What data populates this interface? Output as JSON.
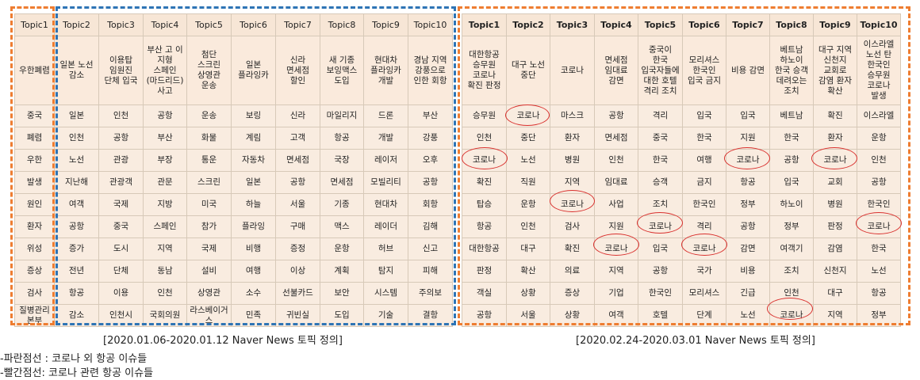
{
  "left_table": {
    "headers": [
      "Topic1",
      "Topic2",
      "Topic3",
      "Topic4",
      "Topic5",
      "Topic6",
      "Topic7",
      "Topic8",
      "Topic9",
      "Topic10"
    ],
    "definitions": [
      "우한폐렴",
      "일본 노선 감소",
      "이용탑 임원진 단체 입국",
      "부산 고 이 지형 스페인(마드리드) 사고",
      "첨단 스크린 상영관 운송",
      "일본 플라잉카",
      "신라 면세점 할인",
      "새 기종 보잉맥스 도입",
      "현대차 플라잉카 개발",
      "경남 지역 강풍으로 인한 회항"
    ],
    "rows": [
      [
        "중국",
        "일본",
        "인천",
        "공항",
        "운송",
        "보링",
        "신라",
        "마일리지",
        "드론",
        "부산"
      ],
      [
        "폐렴",
        "인천",
        "공항",
        "부산",
        "화물",
        "계림",
        "고객",
        "항공",
        "개발",
        "강풍"
      ],
      [
        "우한",
        "노선",
        "관광",
        "부장",
        "통운",
        "자동차",
        "면세점",
        "국장",
        "레이저",
        "오후"
      ],
      [
        "발생",
        "지난해",
        "관광객",
        "관문",
        "스크린",
        "일본",
        "공항",
        "면세점",
        "모빌리티",
        "공항"
      ],
      [
        "원인",
        "여객",
        "국제",
        "지방",
        "미국",
        "하늘",
        "서울",
        "기종",
        "현대차",
        "회항"
      ],
      [
        "환자",
        "공항",
        "중국",
        "스페인",
        "참가",
        "플라잉",
        "구매",
        "맥스",
        "레이더",
        "김해"
      ],
      [
        "위성",
        "증가",
        "도시",
        "지역",
        "국제",
        "비행",
        "증정",
        "운항",
        "허브",
        "신고"
      ],
      [
        "증상",
        "전년",
        "단체",
        "동남",
        "설비",
        "여행",
        "이상",
        "계획",
        "탐지",
        "피해"
      ],
      [
        "검사",
        "항공",
        "이용",
        "인천",
        "상영관",
        "소수",
        "선불카드",
        "보안",
        "시스템",
        "주의보"
      ],
      [
        "질병관리본부",
        "감소",
        "인천시",
        "국회의원",
        "라스베이거스",
        "민족",
        "귀빈실",
        "도입",
        "기술",
        "결항"
      ]
    ]
  },
  "right_table": {
    "headers": [
      "Topic1",
      "Topic2",
      "Topic3",
      "Topic4",
      "Topic5",
      "Topic6",
      "Topic7",
      "Topic8",
      "Topic9",
      "Topic10"
    ],
    "definitions": [
      "대한항공 승무원 코로나 확진 판정",
      "대구 노선 중단",
      "코로나",
      "면세점 임대료 감면",
      "중국이 한국 입국자들에 대한 호텔 격리 조치",
      "모리셔스 한국인 입국 금지",
      "비용 감면",
      "베트남 하노이 한국 승객 데려오는 조치",
      "대구 지역 신천지 교회로 감염 환자 확산",
      "이스라엘 노선 탄 한국인 승무원 코로나 발생"
    ],
    "rows": [
      [
        "승무원",
        "코로나",
        "마스크",
        "공항",
        "격리",
        "입국",
        "입국",
        "베트남",
        "확진",
        "이스라엘"
      ],
      [
        "인천",
        "중단",
        "환자",
        "면세점",
        "중국",
        "한국",
        "지원",
        "한국",
        "환자",
        "운항"
      ],
      [
        "코로나",
        "노선",
        "병원",
        "인천",
        "한국",
        "여행",
        "코로나",
        "공항",
        "코로나",
        "인천"
      ],
      [
        "확진",
        "직원",
        "지역",
        "임대료",
        "승객",
        "금지",
        "항공",
        "입국",
        "교회",
        "공항"
      ],
      [
        "탑승",
        "운항",
        "코로나",
        "사업",
        "조치",
        "한국인",
        "정부",
        "하노이",
        "병원",
        "한국인"
      ],
      [
        "항공",
        "인천",
        "검사",
        "지원",
        "코로나",
        "격리",
        "공항",
        "정부",
        "판정",
        "코로나"
      ],
      [
        "대한항공",
        "대구",
        "확진",
        "코로나",
        "입국",
        "코로나",
        "감면",
        "여객기",
        "감염",
        "한국"
      ],
      [
        "판정",
        "확산",
        "의료",
        "지역",
        "공항",
        "국가",
        "비용",
        "조치",
        "신천지",
        "노선"
      ],
      [
        "객실",
        "상황",
        "증상",
        "기업",
        "한국인",
        "모리셔스",
        "긴급",
        "인천",
        "대구",
        "항공"
      ],
      [
        "공항",
        "서울",
        "상황",
        "여객",
        "호텔",
        "단계",
        "노선",
        "코로나",
        "지역",
        "정부"
      ]
    ]
  },
  "captions": {
    "left": "[2020.01.06-2020.01.12 Naver News 토픽 정의]",
    "right": "[2020.02.24-2020.03.01 Naver News 토픽 정의]"
  },
  "legend": {
    "blue": "-파란점선 : 코로나 외 항공 이슈들",
    "red": "-빨간점선: 코로나 관련  항공 이슈들"
  },
  "colors": {
    "orange_dash": "#ee7d31",
    "blue_dash": "#2e74b5",
    "circle_red": "#d9312e",
    "cell_bg": "#f9ece0"
  }
}
